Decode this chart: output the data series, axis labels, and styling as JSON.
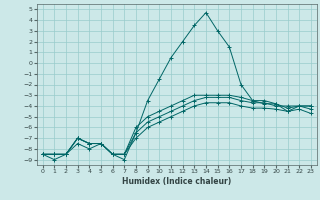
{
  "xlabel": "Humidex (Indice chaleur)",
  "background_color": "#cce8e8",
  "grid_color": "#99cccc",
  "line_color": "#006666",
  "x_data": [
    0,
    1,
    2,
    3,
    4,
    5,
    6,
    7,
    8,
    9,
    10,
    11,
    12,
    13,
    14,
    15,
    16,
    17,
    18,
    19,
    20,
    21,
    22,
    23
  ],
  "series": [
    [
      -8.5,
      -9.0,
      -8.5,
      -7.0,
      -7.5,
      -7.5,
      -8.5,
      -9.0,
      -6.5,
      -3.5,
      -1.5,
      0.5,
      2.0,
      3.5,
      4.7,
      3.0,
      1.5,
      -2.0,
      -3.5,
      -3.8,
      -3.8,
      -4.5,
      -4.0,
      -4.0
    ],
    [
      -8.5,
      -8.5,
      -8.5,
      -7.0,
      -7.5,
      -7.5,
      -8.5,
      -8.5,
      -6.0,
      -5.0,
      -4.5,
      -4.0,
      -3.5,
      -3.0,
      -3.0,
      -3.0,
      -3.0,
      -3.2,
      -3.5,
      -3.5,
      -3.8,
      -4.2,
      -4.0,
      -4.0
    ],
    [
      -8.5,
      -8.5,
      -8.5,
      -7.0,
      -7.5,
      -7.5,
      -8.5,
      -8.5,
      -6.5,
      -5.5,
      -5.0,
      -4.5,
      -4.0,
      -3.5,
      -3.2,
      -3.2,
      -3.2,
      -3.5,
      -3.7,
      -3.7,
      -4.0,
      -4.0,
      -4.0,
      -4.3
    ],
    [
      -8.5,
      -8.5,
      -8.5,
      -7.5,
      -8.0,
      -7.5,
      -8.5,
      -8.5,
      -7.0,
      -6.0,
      -5.5,
      -5.0,
      -4.5,
      -4.0,
      -3.7,
      -3.7,
      -3.7,
      -4.0,
      -4.2,
      -4.2,
      -4.3,
      -4.5,
      -4.3,
      -4.7
    ]
  ],
  "xlim": [
    -0.5,
    23.5
  ],
  "ylim": [
    -9.5,
    5.5
  ],
  "yticks": [
    5,
    4,
    3,
    2,
    1,
    0,
    -1,
    -2,
    -3,
    -4,
    -5,
    -6,
    -7,
    -8,
    -9
  ],
  "xticks": [
    0,
    1,
    2,
    3,
    4,
    5,
    6,
    7,
    8,
    9,
    10,
    11,
    12,
    13,
    14,
    15,
    16,
    17,
    18,
    19,
    20,
    21,
    22,
    23
  ]
}
